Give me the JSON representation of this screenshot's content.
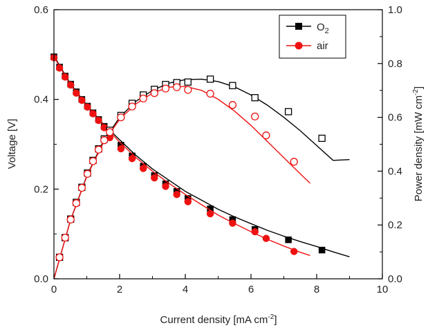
{
  "chart_data": {
    "type": "line",
    "title": "",
    "xlabel": {
      "main": "Current density [mA cm",
      "sup": "-2",
      "end": "]"
    },
    "ylabel": "Voltage [V]",
    "y2label": {
      "main": "Power density [mW cm",
      "sup": "-2",
      "end": "]"
    },
    "xlim": [
      0,
      10
    ],
    "ylim": [
      0,
      0.6
    ],
    "y2lim": [
      0,
      1.0
    ],
    "x_ticks": [
      "0",
      "2",
      "4",
      "6",
      "8",
      "10"
    ],
    "y_ticks": [
      "0.0",
      "0.2",
      "0.4",
      "0.6"
    ],
    "y2_ticks": [
      "0.0",
      "0.2",
      "0.4",
      "0.6",
      "0.8",
      "1.0"
    ],
    "grid": false,
    "legend": {
      "position": "top-right",
      "o2_label": "O",
      "o2_sub": "2",
      "air_label": "air"
    },
    "colors": {
      "o2": "#000000",
      "air": "#ee1111"
    },
    "series": [
      {
        "name": "O2",
        "kind": "voltage",
        "axis": "left",
        "marker": "filled-square",
        "color": "#000000",
        "x": [
          0.0,
          0.17,
          0.34,
          0.51,
          0.68,
          0.85,
          1.02,
          1.19,
          1.36,
          1.53,
          1.7,
          2.04,
          2.38,
          2.72,
          3.06,
          3.4,
          3.74,
          4.08,
          4.76,
          5.44,
          6.12,
          7.14,
          8.16
        ],
        "y": [
          0.495,
          0.472,
          0.452,
          0.434,
          0.417,
          0.4,
          0.385,
          0.37,
          0.355,
          0.34,
          0.325,
          0.298,
          0.274,
          0.251,
          0.23,
          0.212,
          0.195,
          0.179,
          0.156,
          0.132,
          0.11,
          0.087,
          0.064
        ],
        "line_x": [
          0.0,
          0.5,
          1.0,
          1.5,
          2.0,
          2.5,
          3.0,
          3.5,
          4.0,
          4.5,
          5.0,
          5.5,
          6.0,
          6.5,
          7.0,
          7.5,
          8.0,
          8.5,
          9.0
        ],
        "line_y": [
          0.497,
          0.435,
          0.387,
          0.345,
          0.31,
          0.275,
          0.245,
          0.22,
          0.195,
          0.175,
          0.155,
          0.138,
          0.123,
          0.108,
          0.095,
          0.083,
          0.072,
          0.06,
          0.049
        ]
      },
      {
        "name": "air",
        "kind": "voltage",
        "axis": "left",
        "marker": "filled-circle",
        "color": "#ee1111",
        "x": [
          0.0,
          0.17,
          0.34,
          0.51,
          0.68,
          0.85,
          1.02,
          1.19,
          1.36,
          1.53,
          1.7,
          2.04,
          2.38,
          2.72,
          3.06,
          3.4,
          3.74,
          4.08,
          4.76,
          5.44,
          6.12,
          6.46,
          7.31
        ],
        "y": [
          0.493,
          0.47,
          0.45,
          0.432,
          0.414,
          0.398,
          0.383,
          0.368,
          0.353,
          0.337,
          0.315,
          0.29,
          0.268,
          0.246,
          0.225,
          0.206,
          0.188,
          0.172,
          0.145,
          0.124,
          0.105,
          0.09,
          0.061
        ],
        "line_x": [
          0.0,
          0.5,
          1.0,
          1.5,
          2.0,
          2.5,
          3.0,
          3.5,
          4.0,
          4.5,
          5.0,
          5.5,
          6.0,
          6.5,
          7.0,
          7.5,
          7.8
        ],
        "line_y": [
          0.495,
          0.433,
          0.385,
          0.343,
          0.305,
          0.27,
          0.24,
          0.213,
          0.188,
          0.165,
          0.142,
          0.123,
          0.105,
          0.088,
          0.073,
          0.059,
          0.052
        ]
      },
      {
        "name": "O2",
        "kind": "power",
        "axis": "right",
        "marker": "open-square",
        "color": "#000000",
        "x": [
          0.17,
          0.34,
          0.51,
          0.68,
          0.85,
          1.02,
          1.19,
          1.36,
          1.53,
          1.7,
          2.04,
          2.38,
          2.72,
          3.06,
          3.4,
          3.74,
          4.08,
          4.76,
          5.44,
          6.12,
          7.14,
          8.16
        ],
        "y": [
          0.08,
          0.153,
          0.222,
          0.284,
          0.34,
          0.393,
          0.44,
          0.483,
          0.52,
          0.552,
          0.607,
          0.652,
          0.683,
          0.704,
          0.722,
          0.729,
          0.731,
          0.742,
          0.718,
          0.673,
          0.621,
          0.522
        ],
        "line_x": [
          0.0,
          0.5,
          1.0,
          1.5,
          2.0,
          2.5,
          3.0,
          3.5,
          4.0,
          4.5,
          5.0,
          5.5,
          6.0,
          6.5,
          7.0,
          7.5,
          8.0,
          8.5,
          9.0
        ],
        "line_y": [
          0.0,
          0.217,
          0.382,
          0.51,
          0.6,
          0.66,
          0.7,
          0.727,
          0.74,
          0.742,
          0.733,
          0.713,
          0.683,
          0.645,
          0.6,
          0.55,
          0.495,
          0.44,
          0.443
        ]
      },
      {
        "name": "air",
        "kind": "power",
        "axis": "right",
        "marker": "open-circle",
        "color": "#ee1111",
        "x": [
          0.17,
          0.34,
          0.51,
          0.68,
          0.85,
          1.02,
          1.19,
          1.36,
          1.53,
          1.7,
          2.04,
          2.38,
          2.72,
          3.06,
          3.4,
          3.74,
          4.08,
          4.76,
          5.44,
          6.12,
          6.46,
          7.31
        ],
        "y": [
          0.08,
          0.153,
          0.22,
          0.281,
          0.338,
          0.39,
          0.437,
          0.48,
          0.515,
          0.545,
          0.6,
          0.64,
          0.67,
          0.69,
          0.707,
          0.712,
          0.702,
          0.688,
          0.646,
          0.603,
          0.533,
          0.435
        ],
        "line_x": [
          0.0,
          0.5,
          1.0,
          1.5,
          2.0,
          2.5,
          3.0,
          3.5,
          4.0,
          4.5,
          5.0,
          5.5,
          6.0,
          6.5,
          7.0,
          7.5,
          7.8
        ],
        "line_y": [
          0.0,
          0.216,
          0.38,
          0.505,
          0.593,
          0.65,
          0.69,
          0.712,
          0.715,
          0.7,
          0.667,
          0.623,
          0.57,
          0.51,
          0.45,
          0.39,
          0.355
        ]
      }
    ]
  }
}
